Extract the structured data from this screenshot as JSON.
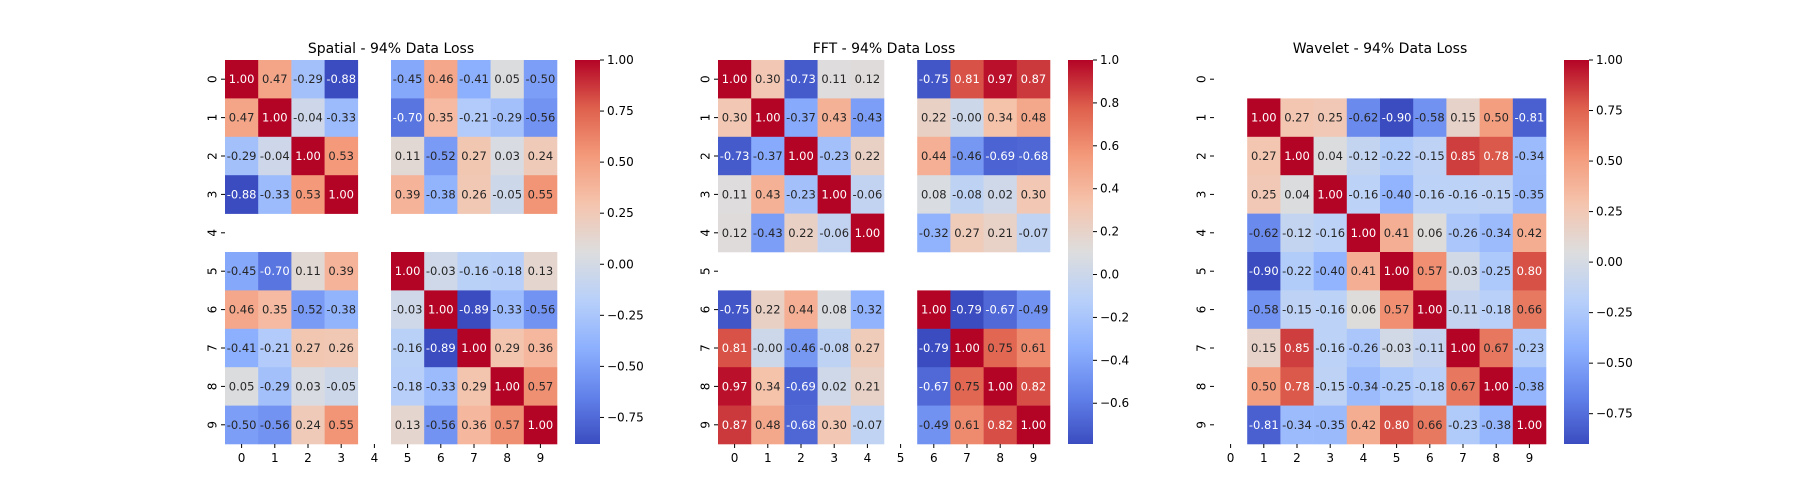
{
  "chart_data": [
    {
      "type": "heatmap",
      "title": "Spatial - 94% Data Loss",
      "xlabel": "",
      "ylabel": "",
      "x_ticks": [
        "0",
        "1",
        "2",
        "3",
        "4",
        "5",
        "6",
        "7",
        "8",
        "9"
      ],
      "y_ticks": [
        "0",
        "1",
        "2",
        "3",
        "4",
        "5",
        "6",
        "7",
        "8",
        "9"
      ],
      "vmin": -0.88,
      "vmax": 1.0,
      "colormap": "coolwarm",
      "colorbar_ticks": [
        "1.00",
        "0.75",
        "0.50",
        "0.25",
        "0.00",
        "−0.25",
        "−0.50",
        "−0.75"
      ],
      "matrix": [
        [
          1.0,
          0.47,
          -0.29,
          -0.88,
          null,
          -0.45,
          0.46,
          -0.41,
          0.05,
          -0.5
        ],
        [
          0.47,
          1.0,
          -0.04,
          -0.33,
          null,
          -0.7,
          0.35,
          -0.21,
          -0.29,
          -0.56
        ],
        [
          -0.29,
          -0.04,
          1.0,
          0.53,
          null,
          0.11,
          -0.52,
          0.27,
          0.03,
          0.24
        ],
        [
          -0.88,
          -0.33,
          0.53,
          1.0,
          null,
          0.39,
          -0.38,
          0.26,
          -0.05,
          0.55
        ],
        [
          null,
          null,
          null,
          null,
          null,
          null,
          null,
          null,
          null,
          null
        ],
        [
          -0.45,
          -0.7,
          0.11,
          0.39,
          null,
          1.0,
          -0.03,
          -0.16,
          -0.18,
          0.13
        ],
        [
          0.46,
          0.35,
          -0.52,
          -0.38,
          null,
          -0.03,
          1.0,
          -0.89,
          -0.33,
          -0.56
        ],
        [
          -0.41,
          -0.21,
          0.27,
          0.26,
          null,
          -0.16,
          -0.89,
          1.0,
          0.29,
          0.36
        ],
        [
          0.05,
          -0.29,
          0.03,
          -0.05,
          null,
          -0.18,
          -0.33,
          0.29,
          1.0,
          0.57
        ],
        [
          -0.5,
          -0.56,
          0.24,
          0.55,
          null,
          0.13,
          -0.56,
          0.36,
          0.57,
          1.0
        ]
      ]
    },
    {
      "type": "heatmap",
      "title": "FFT - 94% Data Loss",
      "xlabel": "",
      "ylabel": "",
      "x_ticks": [
        "0",
        "1",
        "2",
        "3",
        "4",
        "5",
        "6",
        "7",
        "8",
        "9"
      ],
      "y_ticks": [
        "0",
        "1",
        "2",
        "3",
        "4",
        "5",
        "6",
        "7",
        "8",
        "9"
      ],
      "vmin": -0.79,
      "vmax": 1.0,
      "colormap": "coolwarm",
      "colorbar_ticks": [
        "1.0",
        "0.8",
        "0.6",
        "0.4",
        "0.2",
        "0.0",
        "−0.2",
        "−0.4",
        "−0.6"
      ],
      "matrix": [
        [
          1.0,
          0.3,
          -0.73,
          0.11,
          0.12,
          null,
          -0.75,
          0.81,
          0.97,
          0.87
        ],
        [
          0.3,
          1.0,
          -0.37,
          0.43,
          -0.43,
          null,
          0.22,
          -0.0,
          0.34,
          0.48
        ],
        [
          -0.73,
          -0.37,
          1.0,
          -0.23,
          0.22,
          null,
          0.44,
          -0.46,
          -0.69,
          -0.68
        ],
        [
          0.11,
          0.43,
          -0.23,
          1.0,
          -0.06,
          null,
          0.08,
          -0.08,
          0.02,
          0.3
        ],
        [
          0.12,
          -0.43,
          0.22,
          -0.06,
          1.0,
          null,
          -0.32,
          0.27,
          0.21,
          -0.07
        ],
        [
          null,
          null,
          null,
          null,
          null,
          null,
          null,
          null,
          null,
          null
        ],
        [
          -0.75,
          0.22,
          0.44,
          0.08,
          -0.32,
          null,
          1.0,
          -0.79,
          -0.67,
          -0.49
        ],
        [
          0.81,
          -0.0,
          -0.46,
          -0.08,
          0.27,
          null,
          -0.79,
          1.0,
          0.75,
          0.61
        ],
        [
          0.97,
          0.34,
          -0.69,
          0.02,
          0.21,
          null,
          -0.67,
          0.75,
          1.0,
          0.82
        ],
        [
          0.87,
          0.48,
          -0.68,
          0.3,
          -0.07,
          null,
          -0.49,
          0.61,
          0.82,
          1.0
        ]
      ]
    },
    {
      "type": "heatmap",
      "title": "Wavelet - 94% Data Loss",
      "xlabel": "",
      "ylabel": "",
      "x_ticks": [
        "0",
        "1",
        "2",
        "3",
        "4",
        "5",
        "6",
        "7",
        "8",
        "9"
      ],
      "y_ticks": [
        "0",
        "1",
        "2",
        "3",
        "4",
        "5",
        "6",
        "7",
        "8",
        "9"
      ],
      "vmin": -0.9,
      "vmax": 1.0,
      "colormap": "coolwarm",
      "colorbar_ticks": [
        "1.00",
        "0.75",
        "0.50",
        "0.25",
        "0.00",
        "−0.25",
        "−0.50",
        "−0.75"
      ],
      "matrix": [
        [
          null,
          null,
          null,
          null,
          null,
          null,
          null,
          null,
          null,
          null
        ],
        [
          null,
          1.0,
          0.27,
          0.25,
          -0.62,
          -0.9,
          -0.58,
          0.15,
          0.5,
          -0.81
        ],
        [
          null,
          0.27,
          1.0,
          0.04,
          -0.12,
          -0.22,
          -0.15,
          0.85,
          0.78,
          -0.34
        ],
        [
          null,
          0.25,
          0.04,
          1.0,
          -0.16,
          -0.4,
          -0.16,
          -0.16,
          -0.15,
          -0.35
        ],
        [
          null,
          -0.62,
          -0.12,
          -0.16,
          1.0,
          0.41,
          0.06,
          -0.26,
          -0.34,
          0.42
        ],
        [
          null,
          -0.9,
          -0.22,
          -0.4,
          0.41,
          1.0,
          0.57,
          -0.03,
          -0.25,
          0.8
        ],
        [
          null,
          -0.58,
          -0.15,
          -0.16,
          0.06,
          0.57,
          1.0,
          -0.11,
          -0.18,
          0.66
        ],
        [
          null,
          0.15,
          0.85,
          -0.16,
          -0.26,
          -0.03,
          -0.11,
          1.0,
          0.67,
          -0.23
        ],
        [
          null,
          0.5,
          0.78,
          -0.15,
          -0.34,
          -0.25,
          -0.18,
          0.67,
          1.0,
          -0.38
        ],
        [
          null,
          -0.81,
          -0.34,
          -0.35,
          0.42,
          0.8,
          0.66,
          -0.23,
          -0.38,
          1.0
        ]
      ]
    }
  ]
}
